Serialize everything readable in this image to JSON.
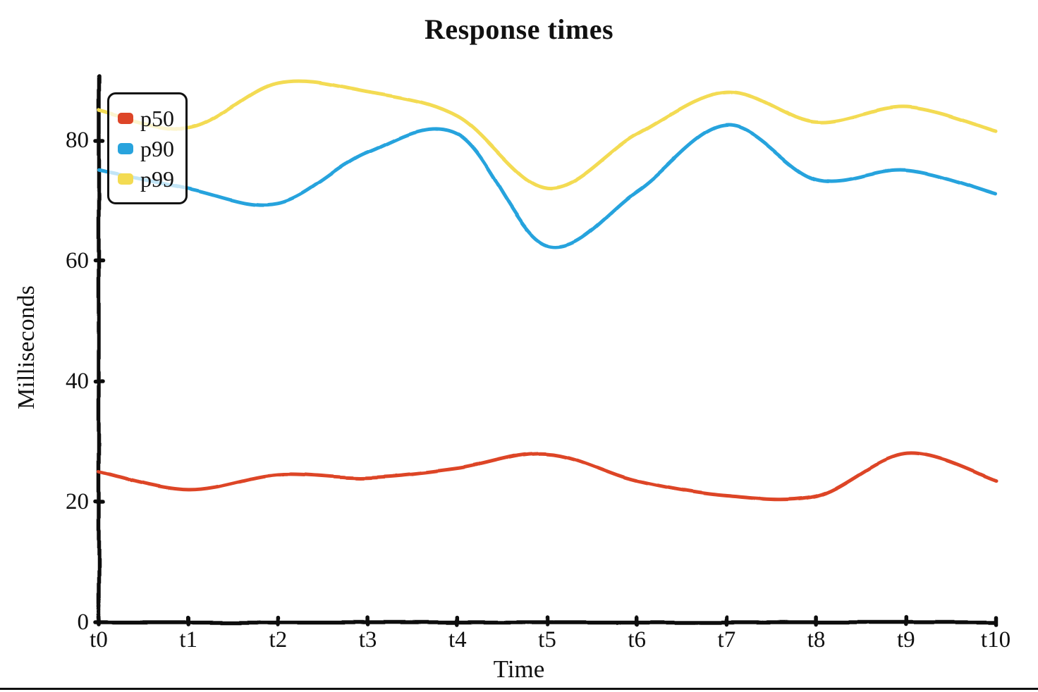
{
  "chart_data": {
    "type": "line",
    "title": "Response times",
    "xlabel": "Time",
    "ylabel": "Milliseconds",
    "categories": [
      "t0",
      "t1",
      "t2",
      "t3",
      "t4",
      "t5",
      "t6",
      "t7",
      "t8",
      "t9",
      "t10"
    ],
    "y_ticks": [
      0,
      20,
      40,
      60,
      80
    ],
    "ylim": [
      0,
      91
    ],
    "grid": false,
    "legend_position": "upper-left",
    "axis_color": "#111111",
    "background_color": "#ffffff",
    "series": [
      {
        "name": "p50",
        "color": "#dd4528",
        "values": [
          25,
          22,
          24.5,
          24,
          25.5,
          28,
          23.5,
          21,
          21,
          28,
          23.5
        ]
      },
      {
        "name": "p90",
        "color": "#28a3dd",
        "values": [
          75,
          72,
          69.5,
          78,
          81,
          62.5,
          71.5,
          82.5,
          73.5,
          75,
          71
        ]
      },
      {
        "name": "p99",
        "color": "#f3db52",
        "values": [
          85,
          82,
          89.5,
          88,
          84,
          72,
          81,
          88,
          83,
          85.5,
          81.5
        ]
      }
    ]
  }
}
